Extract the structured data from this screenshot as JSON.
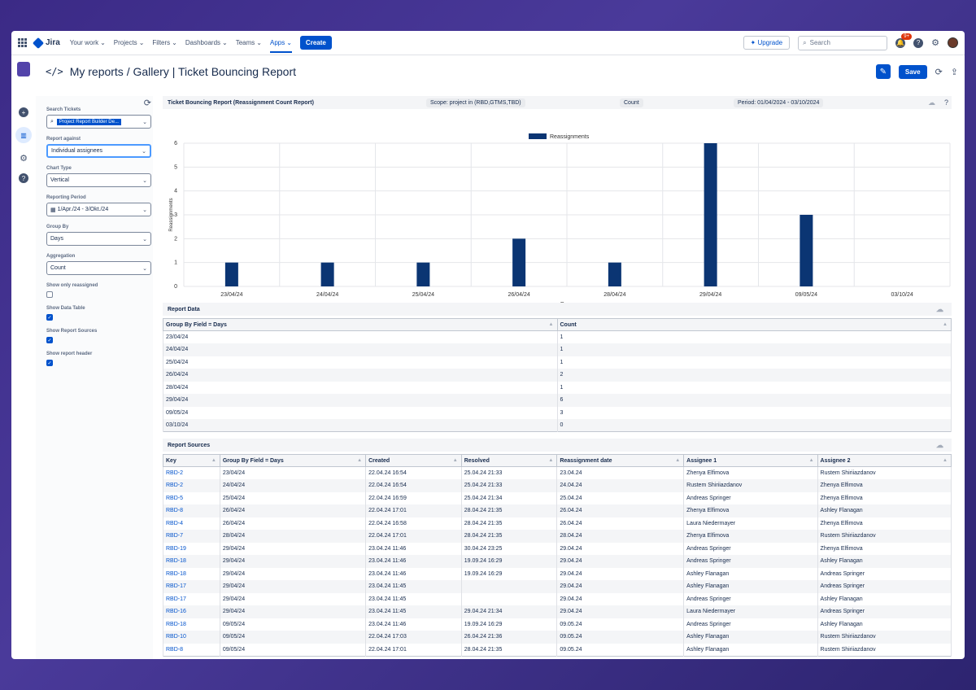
{
  "nav": {
    "product": "Jira",
    "items": [
      "Your work",
      "Projects",
      "Filters",
      "Dashboards",
      "Teams",
      "Apps"
    ],
    "create": "Create",
    "upgrade": "Upgrade",
    "search_placeholder": "Search",
    "notifications_badge": "9+"
  },
  "breadcrumb": {
    "parent": "My reports",
    "title": "Gallery | Ticket Bouncing Report"
  },
  "header_actions": {
    "save": "Save"
  },
  "left": {
    "search_label": "Search Tickets",
    "search_value": "Project Report Builder De...",
    "report_against_label": "Report against",
    "report_against_value": "Individual assignees",
    "chart_type_label": "Chart Type",
    "chart_type_value": "Vertical",
    "period_label": "Reporting Period",
    "period_value": "1/Apr./24 - 3/Okt./24",
    "group_by_label": "Group By",
    "group_by_value": "Days",
    "aggregation_label": "Aggregation",
    "aggregation_value": "Count",
    "show_only_reassigned_label": "Show only reassigned",
    "show_data_table_label": "Show Data Table",
    "show_report_sources_label": "Show Report Sources",
    "show_report_header_label": "Show report header",
    "show_only_reassigned": false,
    "show_data_table": true,
    "show_report_sources": true,
    "show_report_header": true
  },
  "chart_header": {
    "title": "Ticket Bouncing Report (Reassignment Count Report)",
    "scope": "Scope: project in (RBD,GTMS,TBD)",
    "metric": "Count",
    "period": "Period: 01/04/2024 - 03/10/2024"
  },
  "chart_data": {
    "type": "bar",
    "categories": [
      "23/04/24",
      "24/04/24",
      "25/04/24",
      "26/04/24",
      "28/04/24",
      "29/04/24",
      "09/05/24",
      "03/10/24"
    ],
    "series": [
      {
        "name": "Reassignments",
        "values": [
          1,
          1,
          1,
          2,
          1,
          6,
          3,
          0
        ]
      }
    ],
    "xlabel": "Days",
    "ylabel": "Reassignments",
    "ylim": [
      0,
      6
    ],
    "yticks": [
      0,
      1,
      2,
      3,
      4,
      5,
      6
    ],
    "grid": true,
    "legend": "top-center",
    "color": "#0b3573"
  },
  "report_data": {
    "title": "Report Data",
    "columns": [
      "Group By Field = Days",
      "Count"
    ],
    "rows": [
      [
        "23/04/24",
        "1"
      ],
      [
        "24/04/24",
        "1"
      ],
      [
        "25/04/24",
        "1"
      ],
      [
        "26/04/24",
        "2"
      ],
      [
        "28/04/24",
        "1"
      ],
      [
        "29/04/24",
        "6"
      ],
      [
        "09/05/24",
        "3"
      ],
      [
        "03/10/24",
        "0"
      ]
    ]
  },
  "report_sources": {
    "title": "Report Sources",
    "columns": [
      "Key",
      "Group By Field = Days",
      "Created",
      "Resolved",
      "Reassignment date",
      "Assignee 1",
      "Assignee 2"
    ],
    "rows": [
      [
        "RBD-2",
        "23/04/24",
        "22.04.24 16:54",
        "25.04.24 21:33",
        "23.04.24",
        "Zhenya Elfimova",
        "Rustem Shiriiazdanov"
      ],
      [
        "RBD-2",
        "24/04/24",
        "22.04.24 16:54",
        "25.04.24 21:33",
        "24.04.24",
        "Rustem Shiriiazdanov",
        "Zhenya Elfimova"
      ],
      [
        "RBD-5",
        "25/04/24",
        "22.04.24 16:59",
        "25.04.24 21:34",
        "25.04.24",
        "Andreas Springer",
        "Zhenya Elfimova"
      ],
      [
        "RBD-8",
        "26/04/24",
        "22.04.24 17:01",
        "28.04.24 21:35",
        "26.04.24",
        "Zhenya Elfimova",
        "Ashley Flanagan"
      ],
      [
        "RBD-4",
        "26/04/24",
        "22.04.24 16:58",
        "28.04.24 21:35",
        "26.04.24",
        "Laura Niedermayer",
        "Zhenya Elfimova"
      ],
      [
        "RBD-7",
        "28/04/24",
        "22.04.24 17:01",
        "28.04.24 21:35",
        "28.04.24",
        "Zhenya Elfimova",
        "Rustem Shiriiazdanov"
      ],
      [
        "RBD-19",
        "29/04/24",
        "23.04.24 11:46",
        "30.04.24 23:25",
        "29.04.24",
        "Andreas Springer",
        "Zhenya Elfimova"
      ],
      [
        "RBD-18",
        "29/04/24",
        "23.04.24 11:46",
        "19.09.24 16:29",
        "29.04.24",
        "Andreas Springer",
        "Ashley Flanagan"
      ],
      [
        "RBD-18",
        "29/04/24",
        "23.04.24 11:46",
        "19.09.24 16:29",
        "29.04.24",
        "Ashley Flanagan",
        "Andreas Springer"
      ],
      [
        "RBD-17",
        "29/04/24",
        "23.04.24 11:45",
        "",
        "29.04.24",
        "Ashley Flanagan",
        "Andreas Springer"
      ],
      [
        "RBD-17",
        "29/04/24",
        "23.04.24 11:45",
        "",
        "29.04.24",
        "Andreas Springer",
        "Ashley Flanagan"
      ],
      [
        "RBD-16",
        "29/04/24",
        "23.04.24 11:45",
        "29.04.24 21:34",
        "29.04.24",
        "Laura Niedermayer",
        "Andreas Springer"
      ],
      [
        "RBD-18",
        "09/05/24",
        "23.04.24 11:46",
        "19.09.24 16:29",
        "09.05.24",
        "Andreas Springer",
        "Ashley Flanagan"
      ],
      [
        "RBD-10",
        "09/05/24",
        "22.04.24 17:03",
        "26.04.24 21:36",
        "09.05.24",
        "Ashley Flanagan",
        "Rustem Shiriiazdanov"
      ],
      [
        "RBD-8",
        "09/05/24",
        "22.04.24 17:01",
        "28.04.24 21:35",
        "09.05.24",
        "Ashley Flanagan",
        "Rustem Shiriiazdanov"
      ]
    ]
  }
}
